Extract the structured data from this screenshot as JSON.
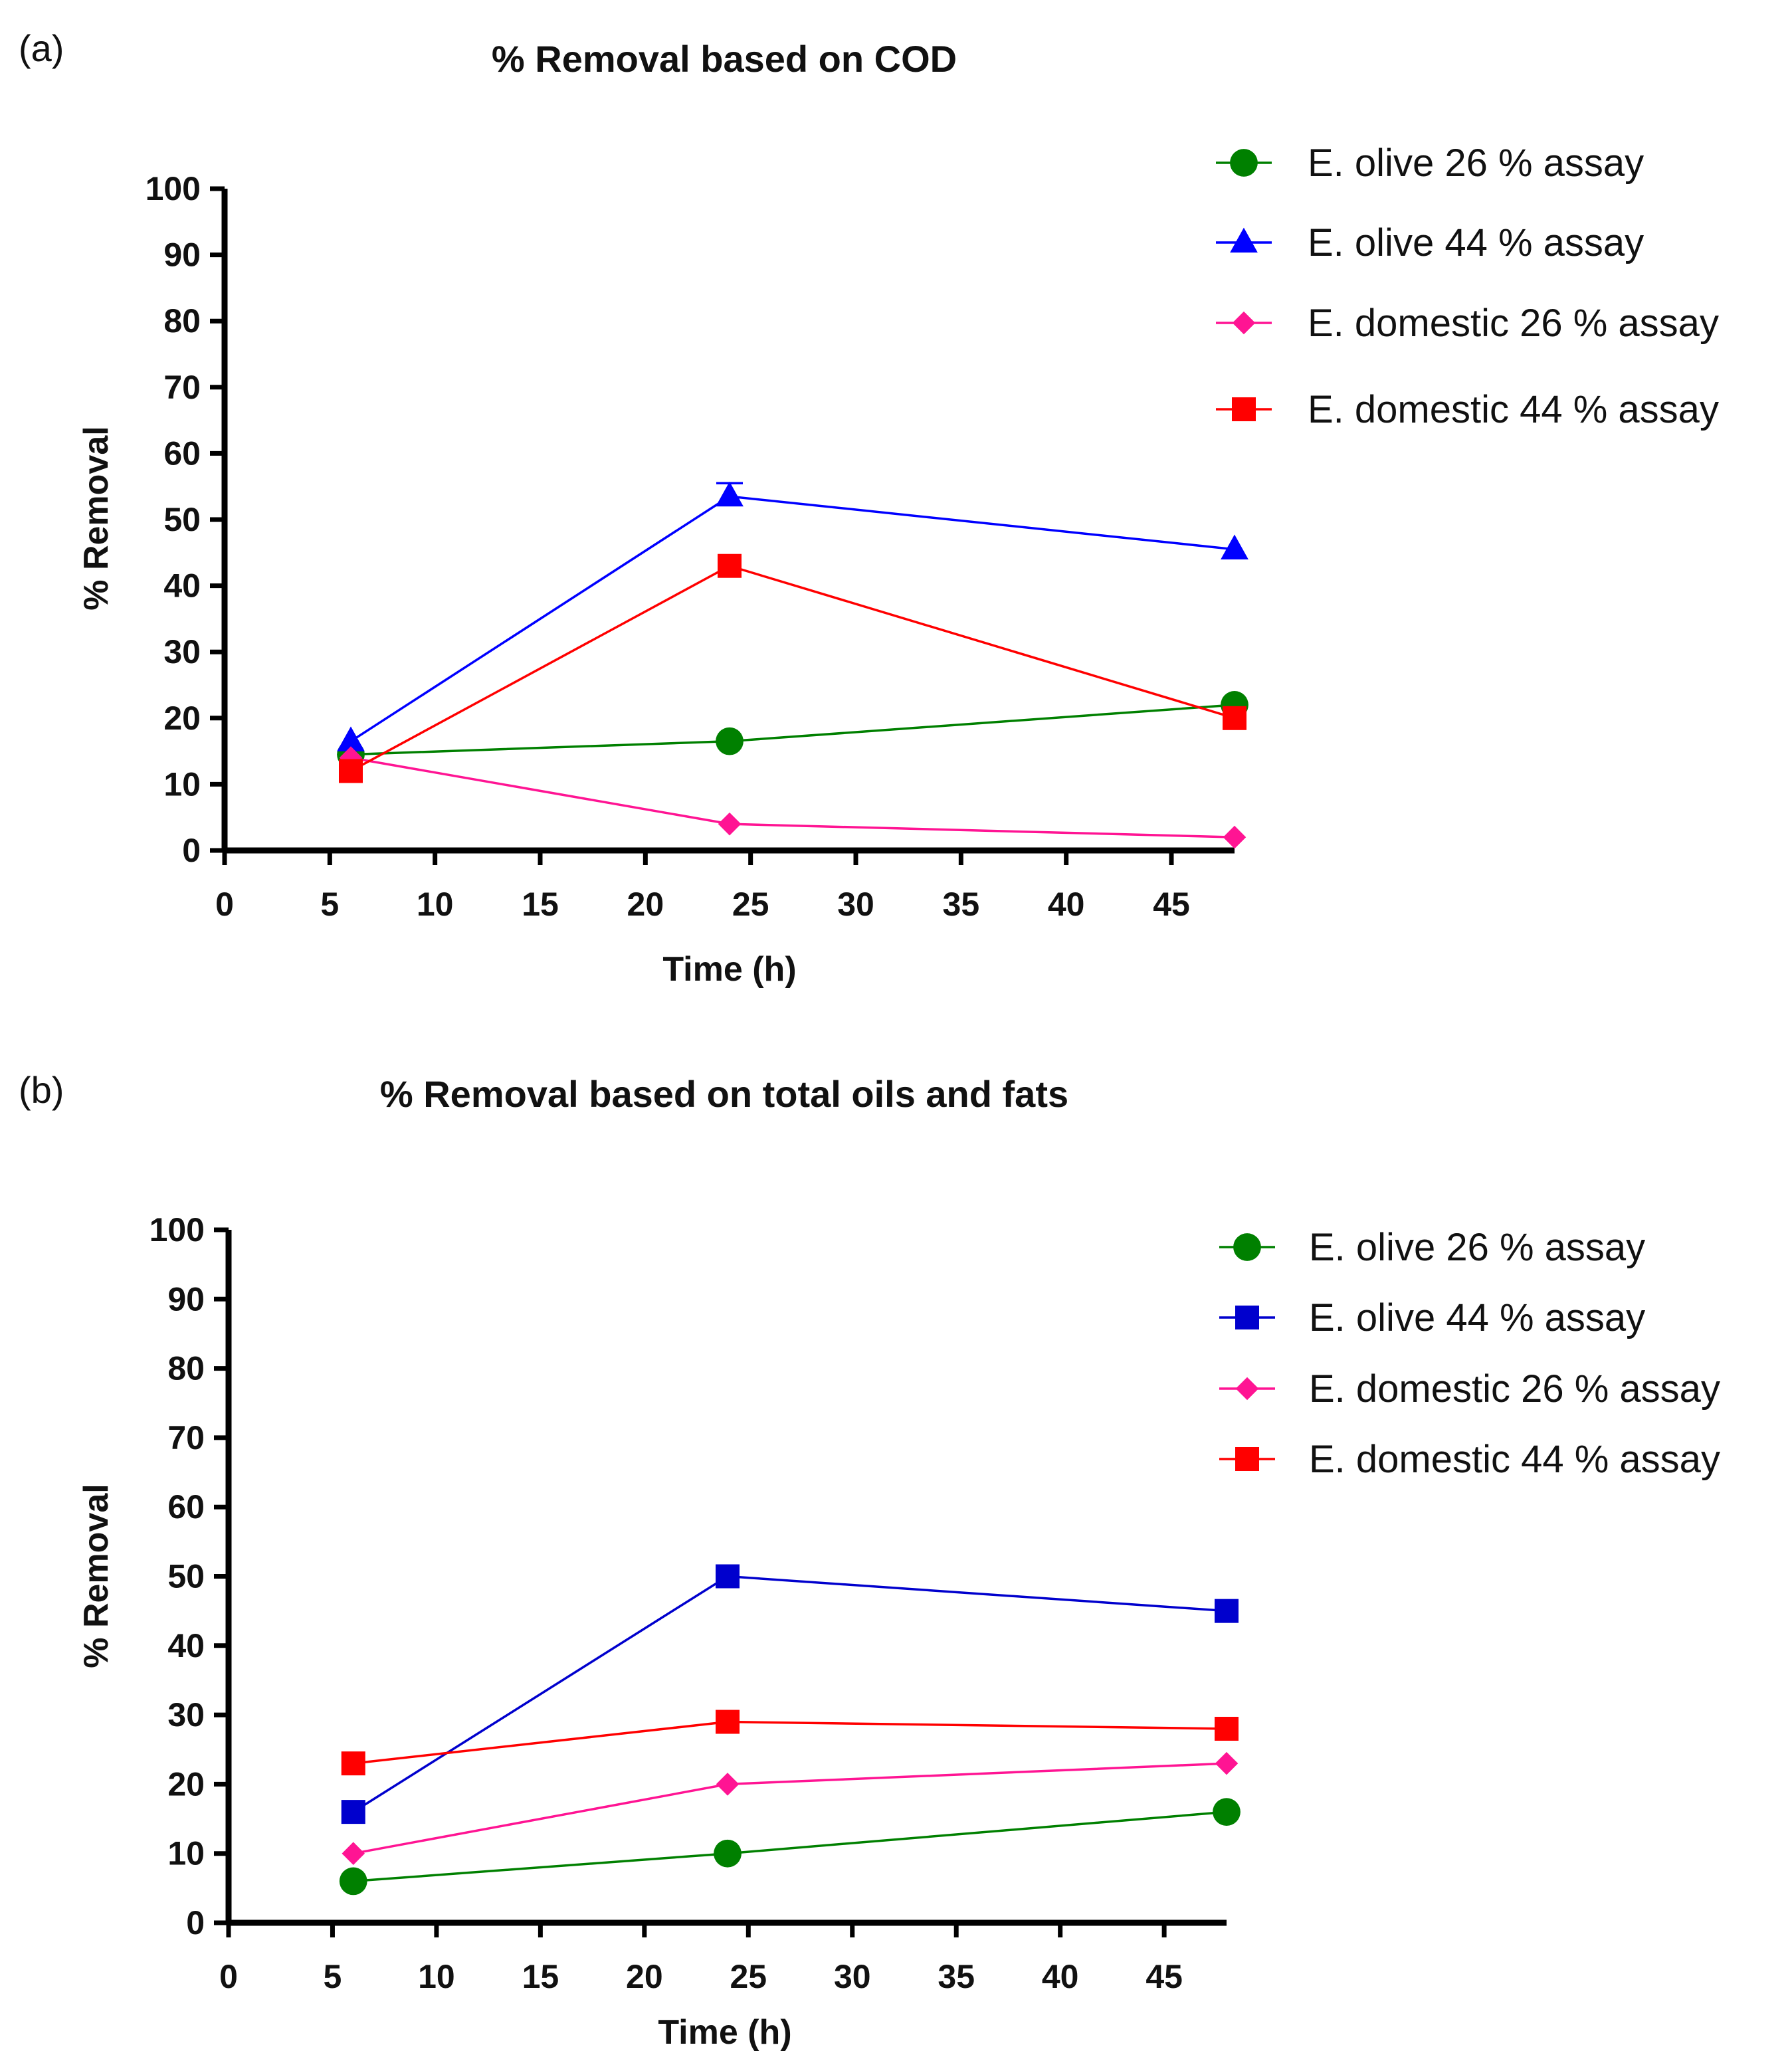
{
  "chart_data": [
    {
      "type": "line",
      "panel_label": "(a)",
      "title": "% Removal based on COD",
      "xlabel": "Time  (h)",
      "ylabel": "% Removal",
      "xlim": [
        0,
        48
      ],
      "ylim": [
        0,
        100
      ],
      "xticks": [
        "0",
        "5",
        "10",
        "15",
        "20",
        "25",
        "30",
        "35",
        "40",
        "45"
      ],
      "yticks": [
        "0",
        "10",
        "20",
        "30",
        "40",
        "50",
        "60",
        "70",
        "80",
        "90",
        "100"
      ],
      "legend_position": "top-right",
      "series": [
        {
          "name": "E. olive 26 % assay",
          "color": "#008000",
          "marker": "circle",
          "x": [
            6,
            24,
            48
          ],
          "values": [
            14.5,
            16.5,
            22
          ]
        },
        {
          "name": "E. olive 44 % assay",
          "color": "#0000ff",
          "marker": "triangle",
          "x": [
            6,
            24,
            48
          ],
          "values": [
            16.5,
            53.5,
            45.5
          ],
          "error_bars": [
            0,
            2,
            0
          ]
        },
        {
          "name": "E. domestic 26 % assay",
          "color": "#ff1493",
          "marker": "diamond",
          "x": [
            6,
            24,
            48
          ],
          "values": [
            14,
            4,
            2
          ]
        },
        {
          "name": "E. domestic 44 % assay",
          "color": "#ff0000",
          "marker": "square",
          "x": [
            6,
            24,
            48
          ],
          "values": [
            12,
            43,
            20
          ]
        }
      ]
    },
    {
      "type": "line",
      "panel_label": "(b)",
      "title": "% Removal based on total oils and fats",
      "xlabel": "Time  (h)",
      "ylabel": "% Removal",
      "xlim": [
        0,
        48
      ],
      "ylim": [
        0,
        100
      ],
      "xticks": [
        "0",
        "5",
        "10",
        "15",
        "20",
        "25",
        "30",
        "35",
        "40",
        "45"
      ],
      "yticks": [
        "0",
        "10",
        "20",
        "30",
        "40",
        "50",
        "60",
        "70",
        "80",
        "90",
        "100"
      ],
      "legend_position": "top-right",
      "series": [
        {
          "name": "E. olive 26 % assay",
          "color": "#008000",
          "marker": "circle",
          "x": [
            6,
            24,
            48
          ],
          "values": [
            6,
            10,
            16
          ]
        },
        {
          "name": "E. olive 44 % assay",
          "color": "#0000cd",
          "marker": "square",
          "x": [
            6,
            24,
            48
          ],
          "values": [
            16,
            50,
            45
          ]
        },
        {
          "name": "E. domestic 26 % assay",
          "color": "#ff1493",
          "marker": "diamond",
          "x": [
            6,
            24,
            48
          ],
          "values": [
            10,
            20,
            23
          ]
        },
        {
          "name": "E. domestic 44 % assay",
          "color": "#ff0000",
          "marker": "square",
          "x": [
            6,
            24,
            48
          ],
          "values": [
            23,
            29,
            28
          ]
        }
      ]
    }
  ]
}
